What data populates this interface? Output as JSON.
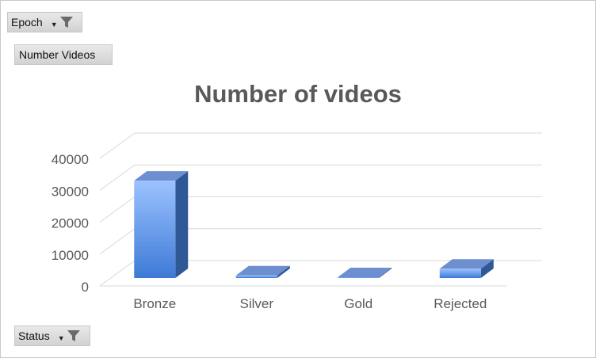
{
  "filters": {
    "epoch_label": "Epoch",
    "status_label": "Status",
    "values_label": "Number Videos"
  },
  "colors": {
    "bar_front_top": "#9cc2ff",
    "bar_front_bottom": "#3d7ad6",
    "bar_top": "#6d8fd0",
    "bar_side": "#2f5896",
    "title": "#595959",
    "axis_text": "#595959",
    "gridline": "#d9d9d9"
  },
  "chart_data": {
    "type": "bar",
    "title": "Number of videos",
    "categories": [
      "Bronze",
      "Silver",
      "Gold",
      "Rejected"
    ],
    "series": [
      {
        "values": [
          33000,
          3300,
          300,
          5400
        ]
      }
    ],
    "ylim": [
      0,
      40000
    ],
    "yticks": [
      0,
      10000,
      20000,
      30000,
      40000
    ],
    "grid": true,
    "legend": "none",
    "three_d": true
  }
}
